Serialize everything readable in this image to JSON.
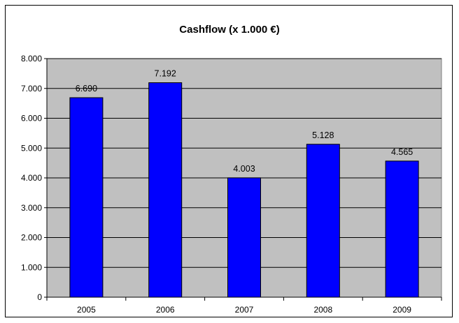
{
  "chart_data": {
    "type": "bar",
    "title": "Cashflow (x 1.000 €)",
    "categories": [
      "2005",
      "2006",
      "2007",
      "2008",
      "2009"
    ],
    "values": [
      6690,
      7192,
      4003,
      5128,
      4565
    ],
    "data_labels": [
      "6.690",
      "7.192",
      "4.003",
      "5.128",
      "4.565"
    ],
    "ylim": [
      0,
      8000
    ],
    "yticks": [
      0,
      1000,
      2000,
      3000,
      4000,
      5000,
      6000,
      7000,
      8000
    ],
    "ytick_labels": [
      "0",
      "1.000",
      "2.000",
      "3.000",
      "4.000",
      "5.000",
      "6.000",
      "7.000",
      "8.000"
    ],
    "xlabel": "",
    "ylabel": "",
    "grid": true,
    "legend": false,
    "colors": {
      "bar_fill": "#0000FF",
      "bar_stroke": "#000000",
      "plot_background": "#C0C0C0",
      "gridline": "#000000"
    }
  }
}
